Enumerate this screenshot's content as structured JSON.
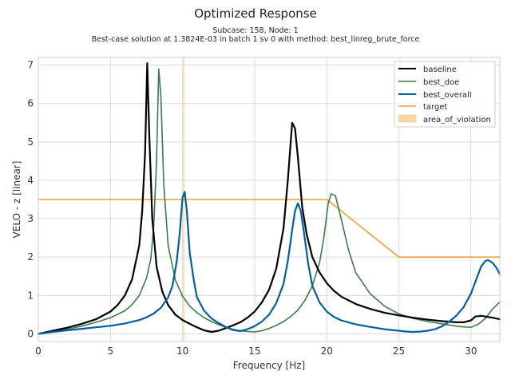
{
  "chart_data": {
    "type": "line",
    "title": "Optimized Response",
    "subtitle_lines": [
      "Subcase: 158, Node: 1",
      "Best-case solution at 1.3824E-03 in batch 1 sv 0 with method: best_linreg_brute_force"
    ],
    "xlabel": "Frequency [Hz]",
    "ylabel": "VELO - z [linear]",
    "xlim": [
      0,
      32
    ],
    "ylim": [
      -0.2,
      7.2
    ],
    "xticks": [
      0,
      5,
      10,
      15,
      20,
      25,
      30
    ],
    "yticks": [
      0,
      1,
      2,
      3,
      4,
      5,
      6,
      7
    ],
    "grid": true,
    "legend_position": "top-right",
    "series": [
      {
        "name": "baseline",
        "color": "#000000",
        "x": [
          0,
          1,
          2,
          3,
          4,
          5,
          5.5,
          6,
          6.5,
          7,
          7.2,
          7.4,
          7.55,
          7.7,
          7.9,
          8.2,
          8.6,
          9,
          9.5,
          10,
          10.5,
          11,
          11.5,
          12,
          12.5,
          13,
          13.5,
          14,
          14.5,
          15,
          15.5,
          16,
          16.5,
          17,
          17.3,
          17.6,
          17.8,
          18,
          18.3,
          18.6,
          19,
          19.5,
          20,
          20.5,
          21,
          22,
          23,
          24,
          25,
          26,
          27,
          28,
          29,
          29.5,
          30,
          30.3,
          30.7,
          31,
          31.5,
          32
        ],
        "y": [
          0,
          0.08,
          0.16,
          0.26,
          0.38,
          0.58,
          0.75,
          1.0,
          1.42,
          2.3,
          3.2,
          4.7,
          7.05,
          5.1,
          3.0,
          1.75,
          1.1,
          0.75,
          0.5,
          0.36,
          0.26,
          0.17,
          0.09,
          0.05,
          0.08,
          0.15,
          0.22,
          0.3,
          0.42,
          0.58,
          0.82,
          1.15,
          1.7,
          2.75,
          4.0,
          5.5,
          5.35,
          4.6,
          3.3,
          2.6,
          2.0,
          1.6,
          1.32,
          1.12,
          0.97,
          0.78,
          0.65,
          0.55,
          0.48,
          0.42,
          0.37,
          0.33,
          0.3,
          0.3,
          0.35,
          0.45,
          0.47,
          0.45,
          0.42,
          0.38
        ]
      },
      {
        "name": "best_doe",
        "color": "#3a7d44",
        "x": [
          0,
          1,
          2,
          3,
          4,
          5,
          6,
          6.5,
          7,
          7.5,
          7.8,
          8.0,
          8.2,
          8.35,
          8.5,
          8.7,
          9,
          9.5,
          10,
          10.5,
          11,
          11.5,
          12,
          12.5,
          13,
          13.5,
          14,
          14.5,
          15,
          15.5,
          16,
          16.5,
          17,
          17.5,
          18,
          18.5,
          19,
          19.5,
          19.8,
          20.1,
          20.3,
          20.6,
          21,
          21.5,
          22,
          23,
          24,
          25,
          26,
          27,
          28,
          28.5,
          29,
          29.5,
          30,
          30.5,
          31,
          31.5,
          32
        ],
        "y": [
          0,
          0.06,
          0.12,
          0.2,
          0.3,
          0.42,
          0.6,
          0.76,
          1.0,
          1.45,
          1.95,
          2.8,
          4.5,
          6.9,
          6.2,
          3.9,
          2.3,
          1.4,
          0.98,
          0.72,
          0.55,
          0.42,
          0.32,
          0.24,
          0.17,
          0.12,
          0.08,
          0.06,
          0.05,
          0.08,
          0.14,
          0.22,
          0.32,
          0.45,
          0.62,
          0.88,
          1.25,
          1.85,
          2.5,
          3.4,
          3.65,
          3.6,
          3.0,
          2.2,
          1.6,
          1.05,
          0.72,
          0.52,
          0.4,
          0.32,
          0.26,
          0.23,
          0.2,
          0.18,
          0.17,
          0.25,
          0.4,
          0.65,
          0.83
        ]
      },
      {
        "name": "best_overall",
        "color": "#005f9e",
        "x": [
          0,
          1,
          2,
          3,
          4,
          5,
          6,
          7,
          7.5,
          8,
          8.5,
          9,
          9.3,
          9.6,
          9.8,
          10.0,
          10.15,
          10.3,
          10.5,
          10.8,
          11,
          11.5,
          12,
          12.5,
          13,
          13.5,
          14,
          14.5,
          15,
          15.5,
          16,
          16.5,
          17,
          17.3,
          17.6,
          17.8,
          18.0,
          18.2,
          18.4,
          18.7,
          19,
          19.5,
          20,
          20.5,
          21,
          22,
          23,
          24,
          25,
          25.5,
          26,
          26.5,
          27,
          27.5,
          28,
          28.5,
          29,
          29.5,
          30,
          30.3,
          30.7,
          31,
          31.2,
          31.5,
          31.8,
          32
        ],
        "y": [
          0,
          0.05,
          0.09,
          0.13,
          0.17,
          0.21,
          0.27,
          0.36,
          0.43,
          0.53,
          0.68,
          0.95,
          1.25,
          1.9,
          2.6,
          3.55,
          3.7,
          3.2,
          2.1,
          1.35,
          0.95,
          0.6,
          0.4,
          0.28,
          0.18,
          0.1,
          0.07,
          0.12,
          0.2,
          0.32,
          0.5,
          0.8,
          1.3,
          1.9,
          2.7,
          3.2,
          3.4,
          3.2,
          2.7,
          1.85,
          1.25,
          0.82,
          0.58,
          0.44,
          0.35,
          0.25,
          0.18,
          0.12,
          0.08,
          0.06,
          0.05,
          0.06,
          0.08,
          0.12,
          0.2,
          0.32,
          0.48,
          0.7,
          1.05,
          1.35,
          1.75,
          1.9,
          1.92,
          1.85,
          1.7,
          1.55
        ]
      },
      {
        "name": "target",
        "color": "#f0a030",
        "x": [
          0,
          20,
          25,
          32
        ],
        "y": [
          3.5,
          3.5,
          2.0,
          2.0
        ]
      }
    ],
    "area_of_violation": {
      "name": "area_of_violation",
      "color": "#f7d7a8",
      "x_ranges": [
        [
          10.0,
          10.15
        ]
      ]
    }
  }
}
